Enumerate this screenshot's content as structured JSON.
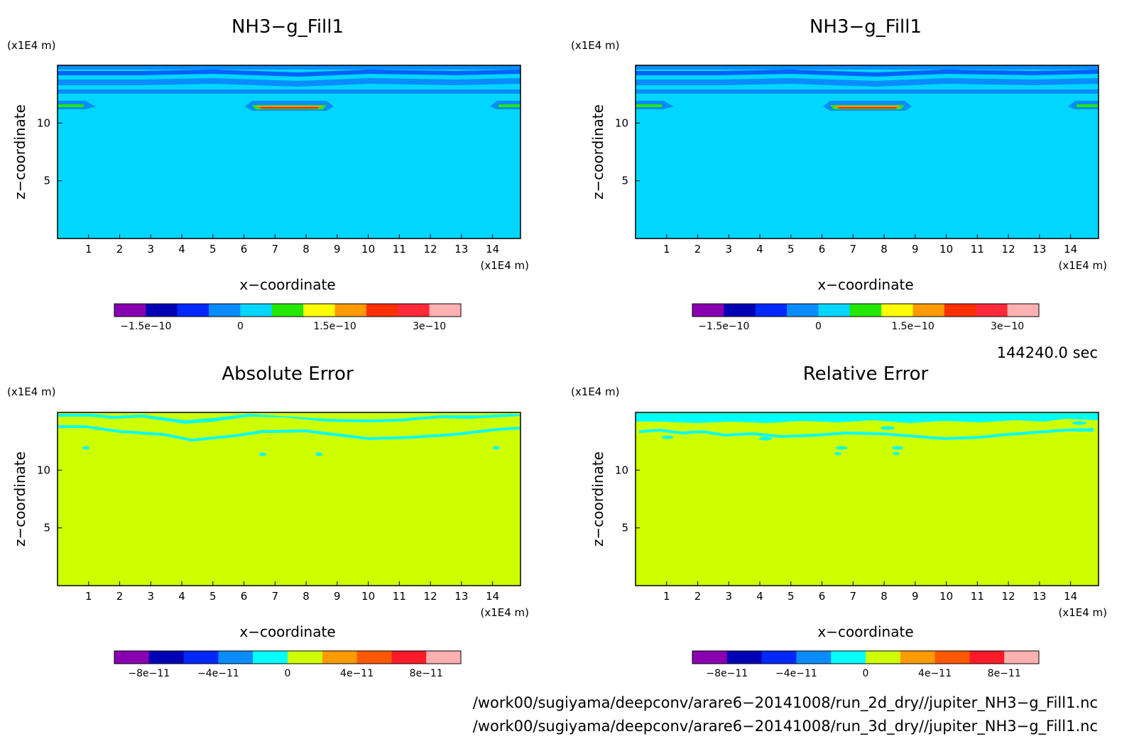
{
  "colors": {
    "nh3_background": "#00d6ff",
    "error_background": "#cdff00",
    "band_blue": "#0a8cff",
    "band_mid": "#0062ff",
    "band_dark": "#0000c8",
    "green": "#24e800",
    "yellow": "#ffff00",
    "orange": "#ff9a00",
    "red": "#ff2000",
    "pink": "#ffb0b0",
    "purple": "#8800b0"
  },
  "panels": [
    {
      "id": "top-left",
      "title": "NH3−g_Fill1",
      "y_unit": "(x1E4 m)",
      "x_unit": "(x1E4 m)",
      "xlabel": "x−coordinate",
      "ylabel": "z−coordinate",
      "x_ticks": [
        "1",
        "2",
        "3",
        "4",
        "5",
        "6",
        "7",
        "8",
        "9",
        "10",
        "11",
        "12",
        "13",
        "14"
      ],
      "y_ticks": [
        "5",
        "10"
      ],
      "colorbar_ticks": [
        "−1.5e−10",
        "0",
        "1.5e−10",
        "3e−10"
      ],
      "colorbar_colors": [
        "#8800b0",
        "#0000b4",
        "#0028ff",
        "#0a8cff",
        "#00d6ff",
        "#24e800",
        "#ffff00",
        "#ff9a00",
        "#ff3000",
        "#ff2a3a",
        "#ffb0b0"
      ]
    },
    {
      "id": "top-right",
      "title": "NH3−g_Fill1",
      "y_unit": "(x1E4 m)",
      "x_unit": "(x1E4 m)",
      "xlabel": "x−coordinate",
      "ylabel": "z−coordinate",
      "x_ticks": [
        "1",
        "2",
        "3",
        "4",
        "5",
        "6",
        "7",
        "8",
        "9",
        "10",
        "11",
        "12",
        "13",
        "14"
      ],
      "y_ticks": [
        "5",
        "10"
      ],
      "colorbar_ticks": [
        "−1.5e−10",
        "0",
        "1.5e−10",
        "3e−10"
      ],
      "colorbar_colors": [
        "#8800b0",
        "#0000b4",
        "#0028ff",
        "#0a8cff",
        "#00d6ff",
        "#24e800",
        "#ffff00",
        "#ff9a00",
        "#ff3000",
        "#ff2a3a",
        "#ffb0b0"
      ]
    },
    {
      "id": "bottom-left",
      "title": "Absolute Error",
      "y_unit": "(x1E4 m)",
      "x_unit": "(x1E4 m)",
      "xlabel": "x−coordinate",
      "ylabel": "z−coordinate",
      "x_ticks": [
        "1",
        "2",
        "3",
        "4",
        "5",
        "6",
        "7",
        "8",
        "9",
        "10",
        "11",
        "12",
        "13",
        "14"
      ],
      "y_ticks": [
        "5",
        "10"
      ],
      "colorbar_ticks": [
        "−8e−11",
        "−4e−11",
        "0",
        "4e−11",
        "8e−11"
      ],
      "colorbar_colors": [
        "#8800b0",
        "#0000b4",
        "#0028ff",
        "#0a8cff",
        "#00ffff",
        "#cdff00",
        "#ff9a00",
        "#ff5a00",
        "#ff1a2a",
        "#ffb0b0"
      ]
    },
    {
      "id": "bottom-right",
      "title": "Relative Error",
      "y_unit": "(x1E4 m)",
      "x_unit": "(x1E4 m)",
      "xlabel": "x−coordinate",
      "ylabel": "z−coordinate",
      "x_ticks": [
        "1",
        "2",
        "3",
        "4",
        "5",
        "6",
        "7",
        "8",
        "9",
        "10",
        "11",
        "12",
        "13",
        "14"
      ],
      "y_ticks": [
        "5",
        "10"
      ],
      "colorbar_ticks": [
        "−8e−11",
        "−4e−11",
        "0",
        "4e−11",
        "8e−11"
      ],
      "colorbar_colors": [
        "#8800b0",
        "#0000b4",
        "#0028ff",
        "#0a8cff",
        "#00ffff",
        "#cdff00",
        "#ff9a00",
        "#ff5a00",
        "#ff1a2a",
        "#ffb0b0"
      ]
    }
  ],
  "time_label": "144240.0 sec",
  "file_paths": [
    "/work00/sugiyama/deepconv/arare6−20141008/run_2d_dry//jupiter_NH3−g_Fill1.nc",
    "/work00/sugiyama/deepconv/arare6−20141008/run_3d_dry//jupiter_NH3−g_Fill1.nc"
  ],
  "chart_data": [
    {
      "type": "heatmap",
      "title": "NH3−g_Fill1",
      "xlabel": "x−coordinate",
      "ylabel": "z−coordinate",
      "x_unit": "x1E4 m",
      "y_unit": "x1E4 m",
      "xlim": [
        0,
        14.9
      ],
      "ylim": [
        0,
        15
      ],
      "colorbar_ticks": [
        -1.5e-10,
        0,
        1.5e-10,
        3e-10
      ],
      "colorbar_levels": 11,
      "background_level": 0,
      "description_of_pattern": "uniform 0 value below z≈13; horizontal bands of slightly negative values at top (z≈13–15); positive maximum near x≈7–8.5, z≈11.5; small features near x≈0.3–1 and x≈14.4–14.9 at z≈11.5"
    },
    {
      "type": "heatmap",
      "title": "NH3−g_Fill1",
      "xlabel": "x−coordinate",
      "ylabel": "z−coordinate",
      "x_unit": "x1E4 m",
      "y_unit": "x1E4 m",
      "xlim": [
        0,
        14.9
      ],
      "ylim": [
        0,
        15
      ],
      "colorbar_ticks": [
        -1.5e-10,
        0,
        1.5e-10,
        3e-10
      ],
      "colorbar_levels": 11,
      "background_level": 0
    },
    {
      "type": "heatmap",
      "title": "Absolute Error",
      "xlabel": "x−coordinate",
      "ylabel": "z−coordinate",
      "x_unit": "x1E4 m",
      "y_unit": "x1E4 m",
      "xlim": [
        0,
        14.9
      ],
      "ylim": [
        0,
        15
      ],
      "colorbar_ticks": [
        -8e-11,
        -4e-11,
        0,
        4e-11,
        8e-11
      ],
      "colorbar_levels": 10,
      "background_level": 0
    },
    {
      "type": "heatmap",
      "title": "Relative Error",
      "xlabel": "x−coordinate",
      "ylabel": "z−coordinate",
      "x_unit": "x1E4 m",
      "y_unit": "x1E4 m",
      "xlim": [
        0,
        14.9
      ],
      "ylim": [
        0,
        15
      ],
      "colorbar_ticks": [
        -8e-11,
        -4e-11,
        0,
        4e-11,
        8e-11
      ],
      "colorbar_levels": 10,
      "background_level": 0
    }
  ]
}
